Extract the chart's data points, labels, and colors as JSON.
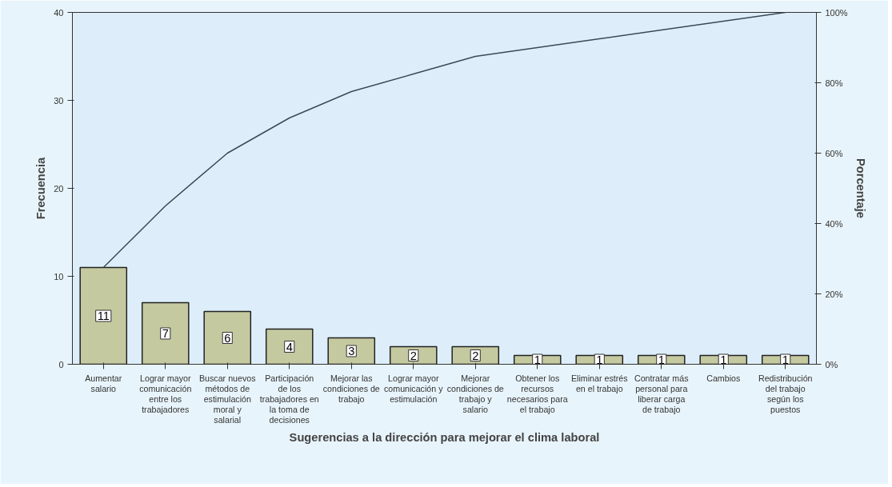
{
  "chart_data": {
    "type": "bar",
    "xlabel": "Sugerencias a la dirección para mejorar el clima laboral",
    "ylabel": "Frecuencia",
    "y2label": "Porcentaje",
    "categories": [
      "Aumentar salario",
      "Lograr mayor comunicación entre los trabajadores",
      "Buscar nuevos métodos de estimulación moral y salarial",
      "Participación de los trabajadores en la toma de decisiones",
      "Mejorar las condiciones de trabajo",
      "Lograr mayor comunicación y estimulación",
      "Mejorar condiciones de trabajo y salario",
      "Obtener los recursos necesarios para el trabajo",
      "Eliminar estrés en el trabajo",
      "Contratar más personal para liberar carga de trabajo",
      "Cambios",
      "Redistribución del trabajo según los puestos"
    ],
    "series": [
      {
        "color": "#c4c9a0",
        "values": [
          11,
          7,
          6,
          4,
          3,
          2,
          2,
          1,
          1,
          1,
          1,
          1
        ],
        "value_labels": [
          "11",
          "7",
          "6",
          "4",
          "3",
          "2",
          "2",
          "1",
          "1",
          "1",
          "1",
          "1"
        ]
      },
      {
        "type": "line",
        "axis": "y2",
        "color": "#3c4a58",
        "values": [
          27.5,
          45,
          60,
          70,
          77.5,
          82.5,
          87.5,
          90,
          92.5,
          95,
          97.5,
          100
        ]
      }
    ],
    "ylim": [
      0,
      40
    ],
    "yticks": [
      0,
      10,
      20,
      30,
      40
    ],
    "y2lim": [
      0,
      100
    ],
    "y2ticks": [
      {
        "value": 0,
        "label": "0%"
      },
      {
        "value": 20,
        "label": "20%"
      },
      {
        "value": 40,
        "label": "40%"
      },
      {
        "value": 60,
        "label": "60%"
      },
      {
        "value": 80,
        "label": "80%"
      },
      {
        "value": 100,
        "label": "100%"
      }
    ],
    "grid": false,
    "marker": "none",
    "line_style": "solid"
  }
}
